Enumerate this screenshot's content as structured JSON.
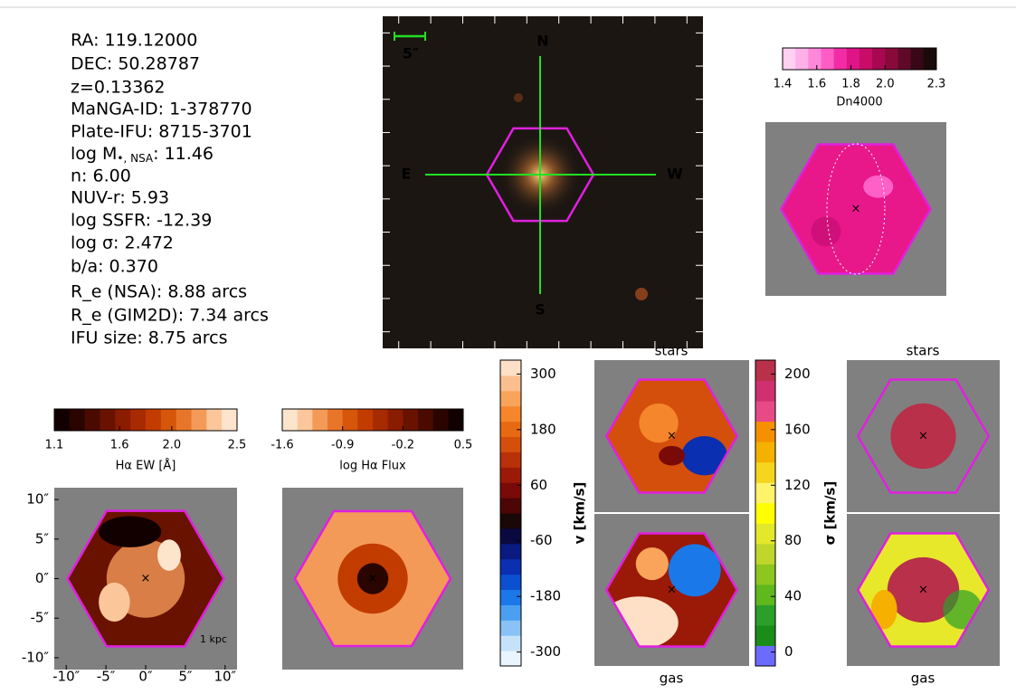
{
  "info": [
    "RA: 119.12000",
    "DEC: 50.28787",
    "z=0.13362",
    "MaNGA-ID: 1-378770",
    "Plate-IFU: 8715-3701",
    {
      "main": "log M",
      "sub": "•, NSA",
      "tail": ": 11.46"
    },
    "n: 6.00",
    "NUV-r: 5.93",
    "log SSFR: -12.39",
    "log σ: 2.472",
    "b/a: 0.370",
    "R_e (NSA): 8.88 arcs",
    "R_e (GIM2D): 7.34 arcs",
    "IFU size: 8.75 arcs"
  ],
  "image": {
    "north": "N",
    "south": "S",
    "east": "E",
    "west": "W",
    "scale": "5″"
  },
  "colorbars": [
    {
      "label": "Dn4000",
      "lim": [
        1.4,
        2.3
      ],
      "ticks": [
        1.4,
        1.6,
        1.8,
        {
          "value": 2.0,
          "label": "2.0"
        },
        2.3
      ],
      "colors": [
        "#ffd0f2",
        "#ffb0e8",
        "#ff88da",
        "#ff5cc6",
        "#f22ca6",
        "#de1487",
        "#c80c68",
        "#a8084f",
        "#880a3b",
        "#600a28",
        "#380818",
        "#1a0a0a"
      ]
    },
    {
      "label": "Hα EW [Å]",
      "lim": [
        1.1,
        2.5
      ],
      "ticks": [
        1.1,
        1.6,
        {
          "value": 2.0,
          "label": "2.0"
        },
        2.5
      ],
      "colors": [
        "#120000",
        "#2a0500",
        "#4a0a00",
        "#6a1200",
        "#8a1c00",
        "#a82a00",
        "#c23c00",
        "#d6560a",
        "#e8762a",
        "#f49a58",
        "#fbc79a",
        "#fde4cc"
      ]
    },
    {
      "label": "log Hα Flux",
      "lim": [
        -1.6,
        0.5
      ],
      "ticks": [
        -1.6,
        -0.9,
        -0.2,
        0.5
      ],
      "colors": [
        "#fde4cc",
        "#fbc79a",
        "#f49a58",
        "#e8762a",
        "#d6560a",
        "#c23c00",
        "#a82a00",
        "#8a1c00",
        "#6a1200",
        "#4a0a00",
        "#2a0500",
        "#120000"
      ]
    },
    {
      "label": "v [km/s]",
      "lim": [
        -330,
        330
      ],
      "ticks": [
        300,
        180,
        60,
        -60,
        -180,
        -300
      ],
      "colors": [
        "#eaf4fd",
        "#c6e2fa",
        "#8ac2f5",
        "#4a9ff0",
        "#1a78e8",
        "#0a50d0",
        "#0a2fb0",
        "#0a1a80",
        "#0a0a40",
        "#1a0707",
        "#4c0606",
        "#7a0a07",
        "#9a1a07",
        "#b83109",
        "#d44f0c",
        "#e76a12",
        "#f5862b",
        "#f9a35b",
        "#fbbf8f",
        "#fde0c5"
      ]
    },
    {
      "label": "σ [km/s]",
      "lim": [
        -10,
        210
      ],
      "ticks": [
        200,
        160,
        120,
        80,
        40,
        0
      ],
      "colors": [
        "#6b6bff",
        "#1a8c1a",
        "#2aa02a",
        "#5eb81e",
        "#8cc61e",
        "#c0d62a",
        "#e2e82a",
        "#ffff00",
        "#fff36a",
        "#f5d51e",
        "#f5b000",
        "#f59000",
        "#e84a88",
        "#d03070",
        "#b8304a"
      ]
    }
  ],
  "axes": {
    "xlim": [
      -11.5,
      11.5
    ],
    "ylim": [
      -11.5,
      11.5
    ],
    "xticks": [
      {
        "value": -10,
        "label": "-10″"
      },
      {
        "value": -5,
        "label": "-5″"
      },
      {
        "value": 0,
        "label": "0″"
      },
      {
        "value": 5,
        "label": "5″"
      },
      {
        "value": 10,
        "label": "10″"
      }
    ],
    "yticks": [
      {
        "value": 10,
        "label": "10″"
      },
      {
        "value": 5,
        "label": "5″"
      },
      {
        "value": 0,
        "label": "0″"
      },
      {
        "value": -5,
        "label": "-5″"
      },
      {
        "value": -10,
        "label": "-10″"
      }
    ]
  },
  "panel_labels": [
    "stars",
    "gas",
    "stars",
    "gas"
  ],
  "scale_label": "1 kpc"
}
